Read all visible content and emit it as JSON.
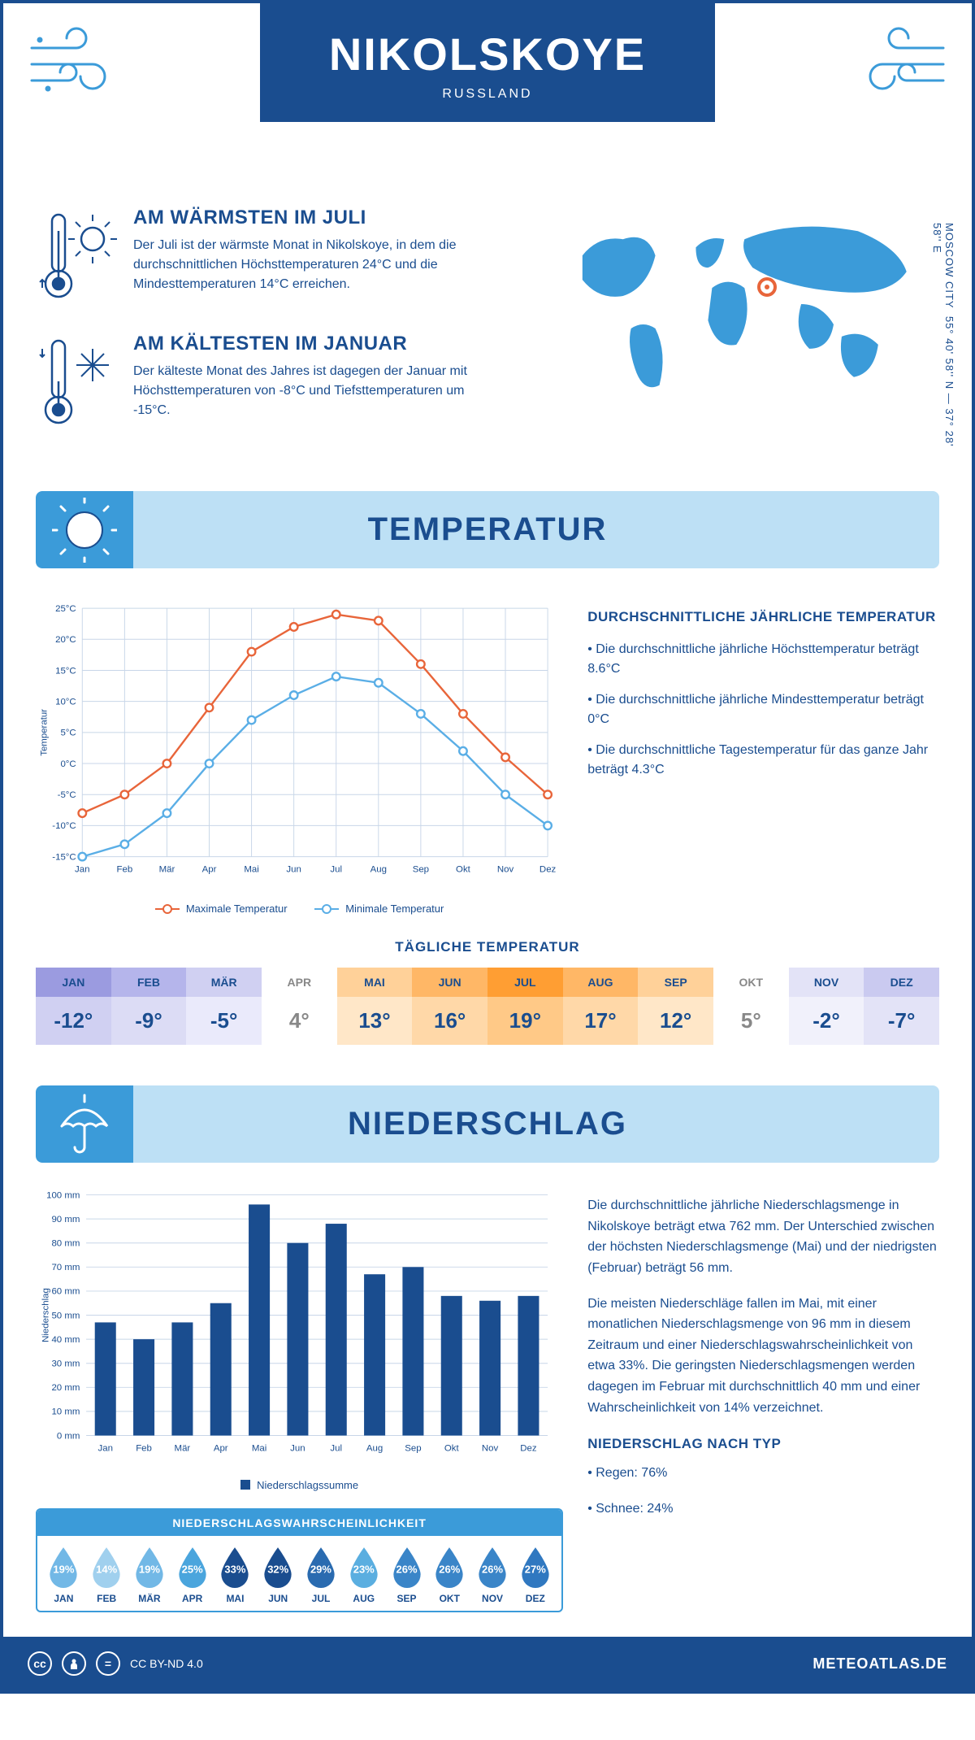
{
  "header": {
    "city": "NIKOLSKOYE",
    "country": "RUSSLAND"
  },
  "coords": {
    "text": "55° 40' 58'' N — 37° 28' 58'' E",
    "region": "MOSCOW CITY"
  },
  "warmest": {
    "title": "AM WÄRMSTEN IM JULI",
    "body": "Der Juli ist der wärmste Monat in Nikolskoye, in dem die durchschnittlichen Höchsttemperaturen 24°C und die Mindesttemperaturen 14°C erreichen."
  },
  "coldest": {
    "title": "AM KÄLTESTEN IM JANUAR",
    "body": "Der kälteste Monat des Jahres ist dagegen der Januar mit Höchsttemperaturen von -8°C und Tiefsttemperaturen um -15°C."
  },
  "sections": {
    "temperature": "TEMPERATUR",
    "precipitation": "NIEDERSCHLAG"
  },
  "months": [
    "Jan",
    "Feb",
    "Mär",
    "Apr",
    "Mai",
    "Jun",
    "Jul",
    "Aug",
    "Sep",
    "Okt",
    "Nov",
    "Dez"
  ],
  "months_upper": [
    "JAN",
    "FEB",
    "MÄR",
    "APR",
    "MAI",
    "JUN",
    "JUL",
    "AUG",
    "SEP",
    "OKT",
    "NOV",
    "DEZ"
  ],
  "temp_chart": {
    "type": "line",
    "y_label": "Temperatur",
    "y_ticks": [
      -15,
      -10,
      -5,
      0,
      5,
      10,
      15,
      20,
      25
    ],
    "y_tick_labels": [
      "-15°C",
      "-10°C",
      "-5°C",
      "0°C",
      "5°C",
      "10°C",
      "15°C",
      "20°C",
      "25°C"
    ],
    "ylim": [
      -15,
      25
    ],
    "series": {
      "max": {
        "label": "Maximale Temperatur",
        "color": "#e8653a",
        "values": [
          -8,
          -5,
          0,
          9,
          18,
          22,
          24,
          23,
          16,
          8,
          1,
          -5
        ]
      },
      "min": {
        "label": "Minimale Temperatur",
        "color": "#5aaee6",
        "values": [
          -15,
          -13,
          -8,
          0,
          7,
          11,
          14,
          13,
          8,
          2,
          -5,
          -10
        ]
      }
    },
    "grid_color": "#c8d6e8",
    "marker_size": 5
  },
  "temp_stats": {
    "title": "DURCHSCHNITTLICHE JÄHRLICHE TEMPERATUR",
    "bullets": [
      "• Die durchschnittliche jährliche Höchsttemperatur beträgt 8.6°C",
      "• Die durchschnittliche jährliche Mindesttemperatur beträgt 0°C",
      "• Die durchschnittliche Tagestemperatur für das ganze Jahr beträgt 4.3°C"
    ]
  },
  "daily_temp": {
    "title": "TÄGLICHE TEMPERATUR",
    "values": [
      "-12°",
      "-9°",
      "-5°",
      "4°",
      "13°",
      "16°",
      "19°",
      "17°",
      "12°",
      "5°",
      "-2°",
      "-7°"
    ],
    "header_colors": [
      "#9b9be0",
      "#b5b5eb",
      "#d0d0f2",
      "#ffffff",
      "#ffd199",
      "#ffb766",
      "#ff9e33",
      "#ffb766",
      "#ffd199",
      "#ffffff",
      "#e3e3f7",
      "#cacaf0"
    ],
    "body_colors": [
      "#d0d0f2",
      "#dcdcf5",
      "#eaeafb",
      "#ffffff",
      "#ffe7c8",
      "#ffd8a8",
      "#ffc987",
      "#ffd8a8",
      "#ffe7c8",
      "#ffffff",
      "#f1f1fb",
      "#e3e3f7"
    ],
    "text_colors": [
      "#1a4d8f",
      "#1a4d8f",
      "#1a4d8f",
      "#888",
      "#1a4d8f",
      "#1a4d8f",
      "#1a4d8f",
      "#1a4d8f",
      "#1a4d8f",
      "#888",
      "#1a4d8f",
      "#1a4d8f"
    ]
  },
  "precip_chart": {
    "type": "bar",
    "y_label": "Niederschlag",
    "y_ticks": [
      0,
      10,
      20,
      30,
      40,
      50,
      60,
      70,
      80,
      90,
      100
    ],
    "y_tick_suffix": " mm",
    "ylim": [
      0,
      100
    ],
    "values": [
      47,
      40,
      47,
      55,
      96,
      80,
      88,
      67,
      70,
      58,
      56,
      58
    ],
    "bar_color": "#1a4d8f",
    "grid_color": "#c8d6e8",
    "legend": "Niederschlagssumme"
  },
  "precip_text": {
    "p1": "Die durchschnittliche jährliche Niederschlagsmenge in Nikolskoye beträgt etwa 762 mm. Der Unterschied zwischen der höchsten Niederschlagsmenge (Mai) und der niedrigsten (Februar) beträgt 56 mm.",
    "p2": "Die meisten Niederschläge fallen im Mai, mit einer monatlichen Niederschlagsmenge von 96 mm in diesem Zeitraum und einer Niederschlagswahrscheinlichkeit von etwa 33%. Die geringsten Niederschlagsmengen werden dagegen im Februar mit durchschnittlich 40 mm und einer Wahrscheinlichkeit von 14% verzeichnet.",
    "type_title": "NIEDERSCHLAG NACH TYP",
    "type_bullets": [
      "• Regen: 76%",
      "• Schnee: 24%"
    ]
  },
  "precip_prob": {
    "title": "NIEDERSCHLAGSWAHRSCHEINLICHKEIT",
    "values": [
      19,
      14,
      19,
      25,
      33,
      32,
      29,
      23,
      26,
      26,
      26,
      27
    ],
    "colors": [
      "#72b8e6",
      "#a0d0ee",
      "#72b8e6",
      "#4aa5dd",
      "#1a4d8f",
      "#1a4d8f",
      "#2a6bb0",
      "#5aaee0",
      "#3a85c8",
      "#3a85c8",
      "#3a85c8",
      "#3078c0"
    ]
  },
  "footer": {
    "license": "CC BY-ND 4.0",
    "site": "METEOATLAS.DE"
  },
  "colors": {
    "brand": "#1a4d8f",
    "light_blue": "#bde0f5",
    "mid_blue": "#3b9bd9",
    "map": "#3b9bd9"
  }
}
